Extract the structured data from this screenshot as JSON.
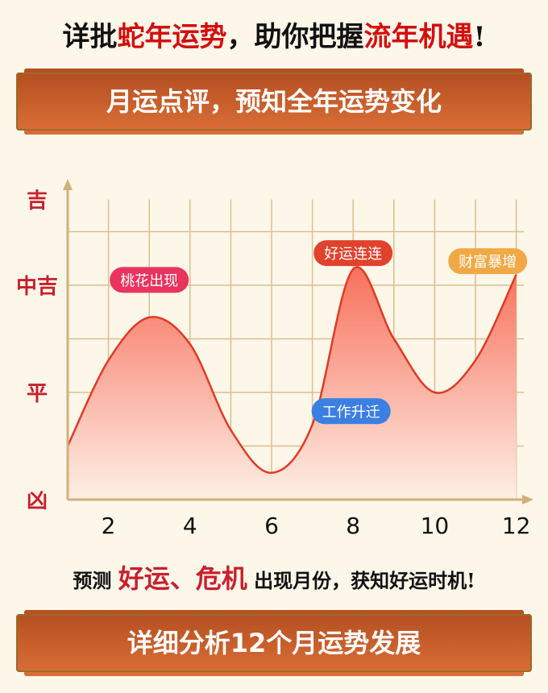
{
  "header": {
    "title_parts": [
      "详批",
      "蛇年运势",
      "，助你把握",
      "流年机遇",
      "!"
    ]
  },
  "banner_top": {
    "label": "月运点评，预知全年运势变化"
  },
  "subline": {
    "parts": [
      "预测 ",
      "好运、危机",
      " 出现月份，获知好运时机!"
    ]
  },
  "banner_bottom": {
    "label": "详细分析12个月运势发展"
  },
  "colors": {
    "axis": "#d2b07a",
    "grid": "#d9bf8e",
    "curve": "#e03a24",
    "fill_top": "#f8705c",
    "level_text": "#c8202e"
  },
  "chart_data": {
    "type": "area",
    "x": [
      1,
      2,
      3,
      4,
      5,
      6,
      7,
      8,
      9,
      10,
      11,
      12
    ],
    "y": [
      1.0,
      2.6,
      3.4,
      2.9,
      1.3,
      0.5,
      1.4,
      4.3,
      3.0,
      2.0,
      2.6,
      4.2
    ],
    "xticks": [
      2,
      4,
      6,
      8,
      10,
      12
    ],
    "xlim": [
      1,
      12
    ],
    "ylim": [
      0,
      5.6
    ],
    "ylevels": [
      {
        "value": 0,
        "label": "凶"
      },
      {
        "value": 2,
        "label": "平"
      },
      {
        "value": 4,
        "label": "中吉"
      },
      {
        "value": 5.6,
        "label": "吉"
      }
    ],
    "grid": true,
    "annotations": [
      {
        "text": "桃花出现",
        "month": 3,
        "level": 4.1,
        "color": "#e8345f"
      },
      {
        "text": "好运连连",
        "month": 8,
        "level": 4.6,
        "color": "#e0422c"
      },
      {
        "text": "财富暴增",
        "month": 11.3,
        "level": 4.45,
        "color": "#f0a945"
      },
      {
        "text": "工作升迁",
        "month": 7.95,
        "level": 1.65,
        "color": "#3b7fe2"
      }
    ]
  }
}
